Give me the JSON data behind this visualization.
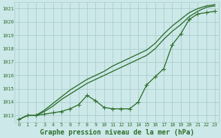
{
  "background_color": "#cce8e8",
  "grid_color": "#aacccc",
  "line_color": "#2d6e2d",
  "xlabel": "Graphe pression niveau de la mer (hPa)",
  "xlabel_fontsize": 7,
  "ylim": [
    1012.5,
    1021.5
  ],
  "xlim": [
    -0.5,
    23.5
  ],
  "yticks": [
    1013,
    1014,
    1015,
    1016,
    1017,
    1018,
    1019,
    1020,
    1021
  ],
  "xticks": [
    0,
    1,
    2,
    3,
    4,
    5,
    6,
    7,
    8,
    9,
    10,
    11,
    12,
    13,
    14,
    15,
    16,
    17,
    18,
    19,
    20,
    21,
    22,
    23
  ],
  "series": [
    {
      "y": [
        1012.7,
        1013.0,
        1013.0,
        1013.1,
        1013.2,
        1013.3,
        1013.5,
        1013.8,
        1014.5,
        1014.1,
        1013.6,
        1013.5,
        1013.5,
        1013.5,
        1014.0,
        1015.3,
        1015.9,
        1016.5,
        1018.3,
        1019.1,
        1020.2,
        1020.6,
        1020.7,
        1020.8
      ],
      "marker": true
    },
    {
      "y": [
        1012.7,
        1013.0,
        1013.0,
        1013.3,
        1013.7,
        1014.2,
        1014.6,
        1015.0,
        1015.4,
        1015.7,
        1016.0,
        1016.3,
        1016.6,
        1016.9,
        1017.2,
        1017.5,
        1018.0,
        1018.7,
        1019.3,
        1019.8,
        1020.4,
        1020.8,
        1021.1,
        1021.2
      ],
      "marker": false
    },
    {
      "y": [
        1012.7,
        1013.0,
        1013.0,
        1013.4,
        1013.9,
        1014.4,
        1014.9,
        1015.3,
        1015.7,
        1016.0,
        1016.3,
        1016.7,
        1017.0,
        1017.3,
        1017.6,
        1017.9,
        1018.4,
        1019.1,
        1019.7,
        1020.2,
        1020.7,
        1021.0,
        1021.2,
        1021.3
      ],
      "marker": false
    }
  ],
  "markersize": 4,
  "linewidth": 1.0
}
